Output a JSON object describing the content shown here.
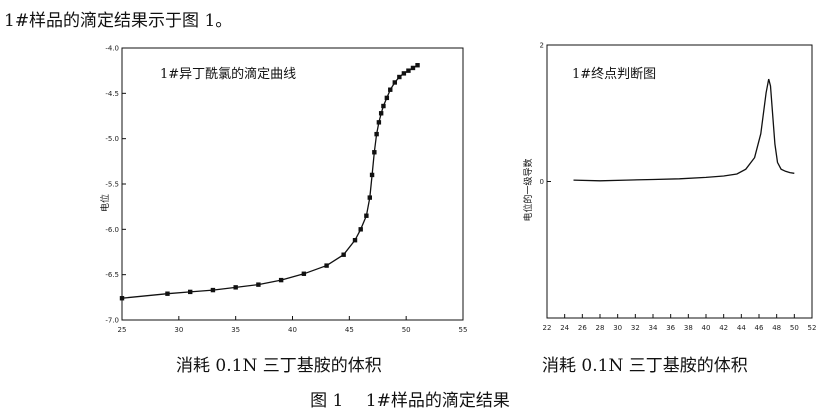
{
  "intro_text": "1#样品的滴定结果示于图 1。",
  "figure_caption": "图 1　 1#样品的滴定结果",
  "chart_data": [
    {
      "type": "line",
      "title": "1#异丁酰氯的滴定曲线",
      "xlabel": "消耗 0.1N 三丁基胺的体积",
      "ylabel": "电位",
      "xlim": [
        25,
        55
      ],
      "ylim": [
        -7.0,
        -4.0
      ],
      "x_ticks": [
        25,
        30,
        35,
        40,
        45,
        50,
        55
      ],
      "y_ticks": [
        -4.0,
        -4.5,
        -5.0,
        -5.5,
        -6.0,
        -6.5,
        -7.0
      ],
      "x_tick_labels": [
        "25",
        "30",
        "35",
        "40",
        "45",
        "50",
        "55"
      ],
      "y_tick_labels": [
        "-4.0",
        "-4.5",
        "-5.0",
        "-5.5",
        "-6.0",
        "-6.5",
        "-7.0"
      ],
      "series": [
        {
          "x": [
            25.0,
            29.0,
            31.0,
            33.0,
            35.0,
            37.0,
            39.0,
            41.0,
            43.0,
            44.5,
            45.5,
            46.0,
            46.5,
            46.8,
            47.0,
            47.2,
            47.4,
            47.6,
            47.8,
            48.0,
            48.3,
            48.6,
            49.0,
            49.4,
            49.8,
            50.2,
            50.6,
            51.0
          ],
          "y": [
            -6.76,
            -6.71,
            -6.69,
            -6.67,
            -6.64,
            -6.61,
            -6.56,
            -6.49,
            -6.4,
            -6.28,
            -6.12,
            -6.0,
            -5.85,
            -5.65,
            -5.4,
            -5.15,
            -4.95,
            -4.82,
            -4.72,
            -4.64,
            -4.55,
            -4.46,
            -4.38,
            -4.32,
            -4.28,
            -4.25,
            -4.22,
            -4.19
          ]
        }
      ]
    },
    {
      "type": "line",
      "title": "1#终点判断图",
      "xlabel": "消耗 0.1N 三丁基胺的体积",
      "ylabel": "电位的一级导数",
      "xlim": [
        22,
        52
      ],
      "ylim": [
        -2,
        2
      ],
      "x_ticks": [
        22,
        24,
        26,
        28,
        30,
        32,
        34,
        36,
        38,
        40,
        42,
        44,
        46,
        48,
        50,
        52
      ],
      "y_ticks": [
        2,
        0
      ],
      "x_tick_labels": [
        "22",
        "24",
        "26",
        "28",
        "30",
        "32",
        "34",
        "36",
        "38",
        "40",
        "42",
        "44",
        "46",
        "48",
        "50",
        "52"
      ],
      "y_tick_labels": [
        "2",
        "0"
      ],
      "series": [
        {
          "x": [
            25.0,
            28.0,
            31.0,
            34.0,
            37.0,
            40.0,
            42.0,
            43.5,
            44.5,
            45.5,
            46.2,
            46.8,
            47.1,
            47.3,
            47.5,
            47.8,
            48.1,
            48.5,
            49.0,
            49.5,
            50.0
          ],
          "y": [
            0.02,
            0.01,
            0.02,
            0.03,
            0.04,
            0.06,
            0.08,
            0.11,
            0.18,
            0.35,
            0.7,
            1.3,
            1.5,
            1.4,
            1.05,
            0.55,
            0.28,
            0.18,
            0.15,
            0.13,
            0.12
          ]
        }
      ]
    }
  ]
}
